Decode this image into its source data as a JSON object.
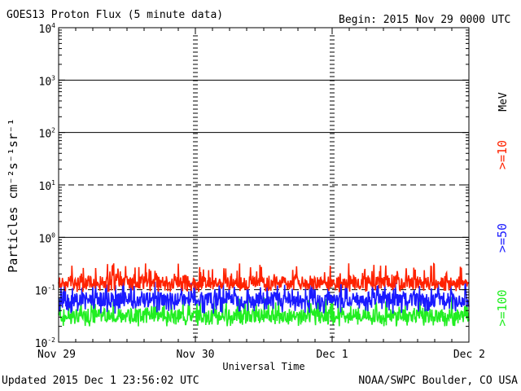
{
  "header": {
    "title": "GOES13 Proton Flux (5 minute data)",
    "begin": "Begin: 2015 Nov 29 0000 UTC"
  },
  "footer": {
    "updated": "Updated 2015 Dec  1 23:56:02 UTC",
    "credit": "NOAA/SWPC Boulder, CO USA"
  },
  "colors": {
    "ge10": "#ff2200",
    "ge50": "#1a1aff",
    "ge100": "#22ee22",
    "axis": "#000000"
  },
  "chart_data": {
    "type": "line",
    "title": "GOES13 Proton Flux (5 minute data)",
    "xlabel": "Universal Time",
    "ylabel": "Particles cm⁻²s⁻¹sr⁻¹",
    "yscale": "log",
    "ylim": [
      0.01,
      10000
    ],
    "yticks": [
      {
        "base": "10",
        "exp": "4"
      },
      {
        "base": "10",
        "exp": "3"
      },
      {
        "base": "10",
        "exp": "2"
      },
      {
        "base": "10",
        "exp": "1"
      },
      {
        "base": "10",
        "exp": "0"
      },
      {
        "base": "10",
        "exp": "-1"
      },
      {
        "base": "10",
        "exp": "-2"
      }
    ],
    "xticks": [
      "Nov 29",
      "Nov 30",
      "Dec 1",
      "Dec 2"
    ],
    "xlim_days": [
      0,
      3
    ],
    "energy_unit": "MeV",
    "reference_lines": [
      {
        "value": 10,
        "style": "dashed"
      },
      {
        "value": 0.1,
        "style": "dashed"
      }
    ],
    "series": [
      {
        "name": ">=10",
        "color": "#ff2200",
        "typical_flux": 0.14,
        "min_flux": 0.09,
        "max_flux": 0.32
      },
      {
        "name": ">=50",
        "color": "#1a1aff",
        "typical_flux": 0.065,
        "min_flux": 0.035,
        "max_flux": 0.15
      },
      {
        "name": ">=100",
        "color": "#22ee22",
        "typical_flux": 0.032,
        "min_flux": 0.02,
        "max_flux": 0.075
      }
    ]
  }
}
